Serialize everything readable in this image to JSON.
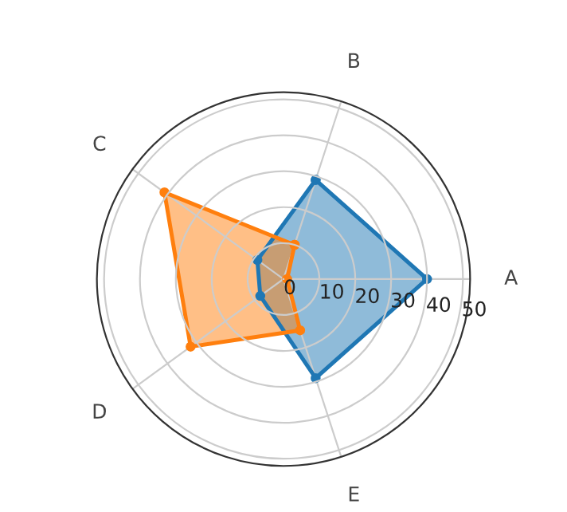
{
  "chart_data": {
    "type": "radar",
    "categories": [
      "B",
      "A",
      "E",
      "D",
      "C"
    ],
    "series": [
      {
        "color": "#1f77b4",
        "values": [
          29,
          40,
          29,
          8,
          9
        ]
      },
      {
        "color": "#ff7f0e",
        "values": [
          10,
          1,
          15,
          32,
          41
        ]
      }
    ],
    "ylim": [
      0,
      52
    ],
    "yticks": [
      0,
      10,
      20,
      30,
      40,
      50
    ],
    "grid": true,
    "marker": "circle",
    "line_style": "solid"
  }
}
